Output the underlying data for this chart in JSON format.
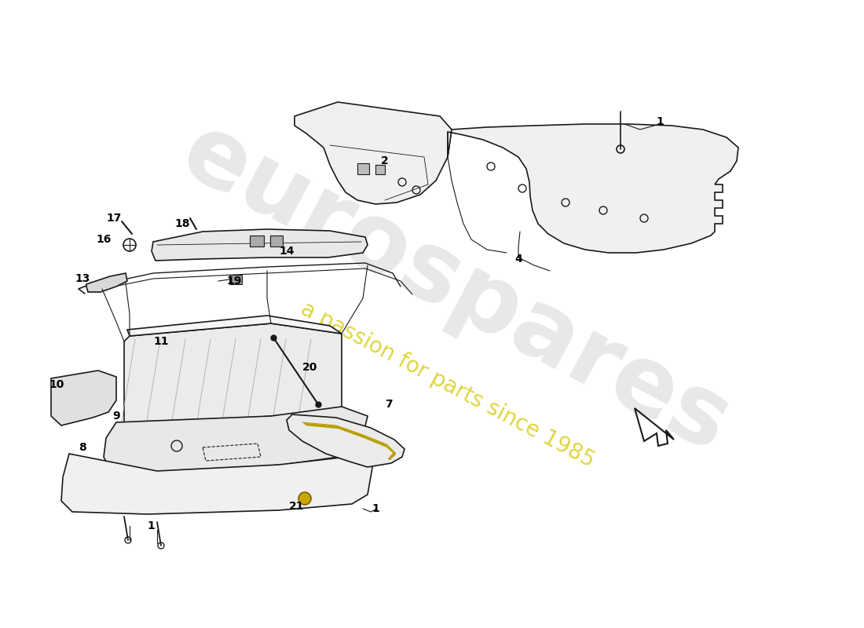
{
  "bg_color": "#ffffff",
  "line_color": "#1a1a1a",
  "fill_light": "#f0f0f0",
  "fill_med": "#e0e0e0",
  "watermark_text1": "eurospares",
  "watermark_text2": "a passion for parts since 1985",
  "watermark_color": "#cccccc",
  "watermark_yellow": "#d4c800",
  "labels": [
    [
      "1",
      840,
      155
    ],
    [
      "2",
      490,
      205
    ],
    [
      "4",
      660,
      330
    ],
    [
      "7",
      495,
      515
    ],
    [
      "8",
      105,
      570
    ],
    [
      "9",
      148,
      530
    ],
    [
      "10",
      72,
      490
    ],
    [
      "11",
      205,
      435
    ],
    [
      "13",
      105,
      355
    ],
    [
      "14",
      365,
      320
    ],
    [
      "16",
      132,
      305
    ],
    [
      "17",
      145,
      278
    ],
    [
      "18",
      232,
      285
    ],
    [
      "19",
      298,
      358
    ],
    [
      "20",
      395,
      468
    ],
    [
      "21",
      378,
      645
    ],
    [
      "1",
      478,
      648
    ],
    [
      "1",
      192,
      670
    ]
  ]
}
